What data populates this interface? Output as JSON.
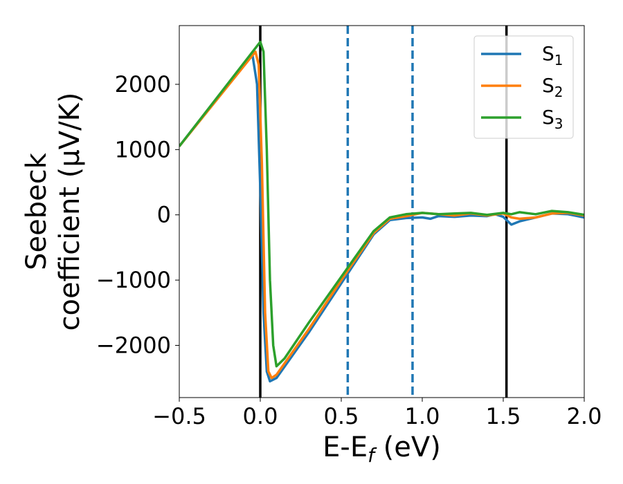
{
  "chart_data": {
    "type": "line",
    "xlabel": {
      "main": "E-E",
      "sub": "f",
      "tail": " (eV)"
    },
    "ylabel": {
      "line1": "Seebeck",
      "line2": "coefficient  (μV/K)"
    },
    "xlim": [
      -0.5,
      2.0
    ],
    "ylim": [
      -2800,
      2900
    ],
    "xticks": [
      -0.5,
      0.0,
      0.5,
      1.0,
      1.5,
      2.0
    ],
    "xtick_labels": [
      "−0.5",
      "0.0",
      "0.5",
      "1.0",
      "1.5",
      "2.0"
    ],
    "yticks": [
      -2000,
      -1000,
      0,
      1000,
      2000
    ],
    "ytick_labels": [
      "−2000",
      "−1000",
      "0",
      "1000",
      "2000"
    ],
    "grid": false,
    "legend_position": "top-right",
    "vlines": [
      {
        "x": 0.0,
        "style": "solid",
        "color": "#000000"
      },
      {
        "x": 1.52,
        "style": "solid",
        "color": "#000000"
      },
      {
        "x": 0.54,
        "style": "dashed",
        "color": "#1f77b4"
      },
      {
        "x": 0.94,
        "style": "dashed",
        "color": "#1f77b4"
      }
    ],
    "series": [
      {
        "name": "S",
        "sub": "1",
        "color": "#1f77b4",
        "x": [
          -0.5,
          -0.05,
          -0.02,
          0.0,
          0.02,
          0.04,
          0.06,
          0.1,
          0.3,
          0.5,
          0.7,
          0.8,
          0.9,
          1.0,
          1.05,
          1.1,
          1.2,
          1.3,
          1.4,
          1.45,
          1.5,
          1.55,
          1.6,
          1.7,
          1.8,
          1.9,
          2.0
        ],
        "y": [
          1050,
          2480,
          2000,
          400,
          -1500,
          -2400,
          -2550,
          -2500,
          -1800,
          -1050,
          -300,
          -80,
          -50,
          -40,
          -60,
          -20,
          -30,
          -10,
          -20,
          10,
          -30,
          -150,
          -100,
          -40,
          20,
          10,
          -40
        ]
      },
      {
        "name": "S",
        "sub": "2",
        "color": "#ff7f0e",
        "x": [
          -0.5,
          -0.03,
          -0.01,
          0.01,
          0.03,
          0.05,
          0.07,
          0.1,
          0.3,
          0.5,
          0.7,
          0.8,
          0.9,
          1.0,
          1.1,
          1.2,
          1.3,
          1.4,
          1.5,
          1.55,
          1.6,
          1.7,
          1.8,
          1.9,
          2.0
        ],
        "y": [
          1050,
          2500,
          2300,
          800,
          -1500,
          -2400,
          -2500,
          -2450,
          -1750,
          -1000,
          -280,
          -60,
          -20,
          30,
          10,
          -10,
          20,
          -10,
          20,
          -40,
          -60,
          -40,
          20,
          30,
          -10
        ]
      },
      {
        "name": "S",
        "sub": "3",
        "color": "#2ca02c",
        "x": [
          -0.5,
          0.0,
          0.02,
          0.04,
          0.06,
          0.08,
          0.1,
          0.15,
          0.3,
          0.5,
          0.7,
          0.8,
          0.9,
          1.0,
          1.1,
          1.2,
          1.3,
          1.4,
          1.5,
          1.55,
          1.6,
          1.7,
          1.8,
          1.9,
          2.0
        ],
        "y": [
          1050,
          2650,
          2500,
          1000,
          -1000,
          -2000,
          -2320,
          -2200,
          -1650,
          -950,
          -250,
          -40,
          10,
          30,
          10,
          20,
          30,
          0,
          30,
          10,
          40,
          10,
          60,
          40,
          0
        ]
      }
    ]
  }
}
